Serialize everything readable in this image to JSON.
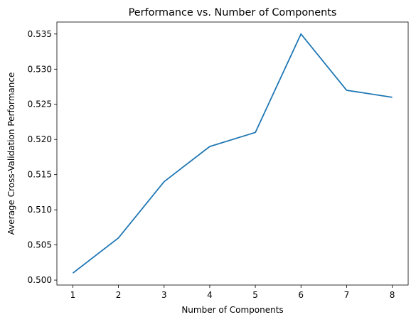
{
  "chart_data": {
    "type": "line",
    "title": "Performance vs. Number of Components",
    "xlabel": "Number of Components",
    "ylabel": "Average Cross-Validation Performance",
    "x": [
      1,
      2,
      3,
      4,
      5,
      6,
      7,
      8
    ],
    "xticks": [
      "1",
      "2",
      "3",
      "4",
      "5",
      "6",
      "7",
      "8"
    ],
    "yticks": [
      "0.500",
      "0.505",
      "0.510",
      "0.515",
      "0.520",
      "0.525",
      "0.530",
      "0.535"
    ],
    "xlim": [
      0.65,
      8.35
    ],
    "ylim": [
      0.4993,
      0.5367
    ],
    "series": [
      {
        "values": [
          0.501,
          0.506,
          0.514,
          0.519,
          0.521,
          0.535,
          0.527,
          0.526
        ],
        "color": "#1f77b4"
      }
    ],
    "grid": false,
    "legend": "none"
  }
}
